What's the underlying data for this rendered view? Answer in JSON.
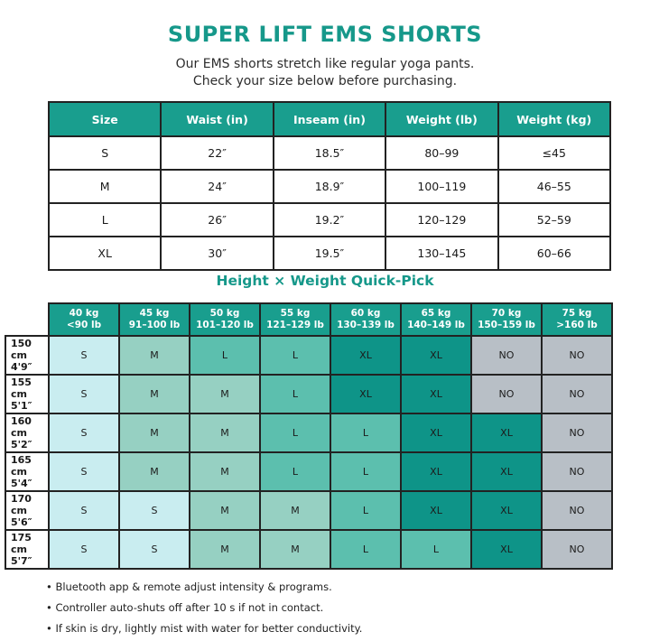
{
  "page": {
    "title": "SUPER LIFT EMS SHORTS",
    "subtitle": [
      "Our EMS shorts stretch like regular yoga pants.",
      "Check your size below before purchasing."
    ]
  },
  "colors": {
    "accent_teal": "#16988a",
    "header_teal": "#199e8e",
    "cell_S": "#c9edf0",
    "cell_M": "#96d0c2",
    "cell_L": "#5cbfae",
    "cell_XL": "#0e9488",
    "cell_NO": "#b8bfc6",
    "border": "#222222"
  },
  "size_table": {
    "headers": [
      "Size",
      "Waist (in)",
      "Inseam (in)",
      "Weight (lb)",
      "Weight (kg)"
    ],
    "rows": [
      [
        "S",
        "22″",
        "18.5″",
        "80–99",
        "≤45"
      ],
      [
        "M",
        "24″",
        "18.9″",
        "100–119",
        "46–55"
      ],
      [
        "L",
        "26″",
        "19.2″",
        "120–129",
        "52–59"
      ],
      [
        "XL",
        "30″",
        "19.5″",
        "130–145",
        "60–66"
      ]
    ]
  },
  "quick_pick": {
    "title": "Height × Weight Quick-Pick",
    "col_headers": [
      "40 kg\n<90 lb",
      "45 kg\n91–100 lb",
      "50 kg\n101–120 lb",
      "55 kg\n121–129 lb",
      "60 kg\n130–139 lb",
      "65 kg\n140–149 lb",
      "70 kg\n150–159 lb",
      "75 kg\n>160 lb"
    ],
    "row_headers": [
      "150 cm\n4'9″",
      "155 cm\n5'1″",
      "160 cm\n5'2″",
      "165 cm\n5'4″",
      "170 cm\n5'6″",
      "175 cm\n5'7″"
    ],
    "cells": [
      [
        "S",
        "M",
        "L",
        "L",
        "XL",
        "XL",
        "NO",
        "NO"
      ],
      [
        "S",
        "M",
        "M",
        "L",
        "XL",
        "XL",
        "NO",
        "NO"
      ],
      [
        "S",
        "M",
        "M",
        "L",
        "L",
        "XL",
        "XL",
        "NO"
      ],
      [
        "S",
        "M",
        "M",
        "L",
        "L",
        "XL",
        "XL",
        "NO"
      ],
      [
        "S",
        "S",
        "M",
        "M",
        "L",
        "XL",
        "XL",
        "NO"
      ],
      [
        "S",
        "S",
        "M",
        "M",
        "L",
        "L",
        "XL",
        "NO"
      ]
    ]
  },
  "notes": [
    "• Bluetooth app & remote adjust intensity & programs.",
    "• Controller auto-shuts off after 10 s if not in contact.",
    "• If skin is dry, lightly mist with water for better conductivity."
  ]
}
